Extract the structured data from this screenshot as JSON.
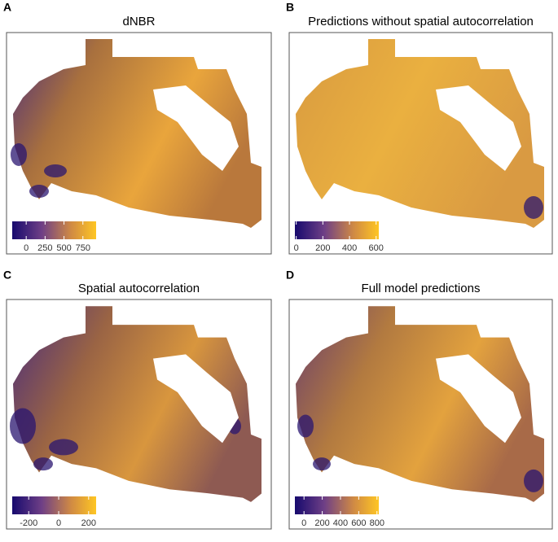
{
  "panels": [
    {
      "label": "A",
      "title": "dNBR",
      "colorbar": {
        "lim": [
          -185,
          925
        ],
        "ticks": [
          0,
          250,
          500,
          750
        ]
      }
    },
    {
      "label": "B",
      "title": "Predictions without spatial autocorrelation",
      "colorbar": {
        "lim": [
          -10,
          620
        ],
        "ticks": [
          0,
          200,
          400,
          600
        ]
      }
    },
    {
      "label": "C",
      "title": "Spatial autocorrelation",
      "colorbar": {
        "lim": [
          -310,
          250
        ],
        "ticks": [
          -200,
          0,
          200
        ]
      }
    },
    {
      "label": "D",
      "title": "Full model predictions",
      "colorbar": {
        "lim": [
          -100,
          820
        ],
        "ticks": [
          0,
          200,
          400,
          600,
          800
        ]
      }
    }
  ]
}
